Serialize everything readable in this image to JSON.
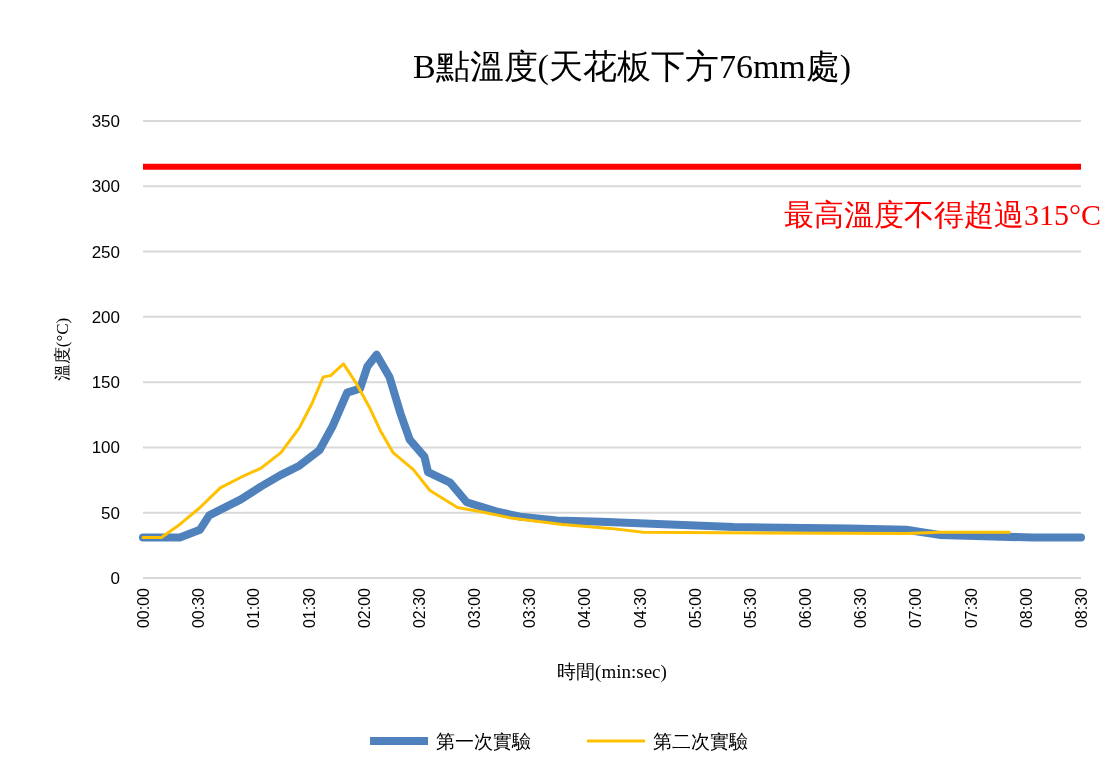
{
  "chart_data": {
    "type": "line",
    "title": "B點溫度(天花板下方76mm處)",
    "xlabel": "時間(min:sec)",
    "ylabel": "溫度(°C)",
    "xlim": [
      0,
      510
    ],
    "xticks": [
      {
        "value": 0,
        "label": "00:00"
      },
      {
        "value": 30,
        "label": "00:30"
      },
      {
        "value": 60,
        "label": "01:00"
      },
      {
        "value": 90,
        "label": "01:30"
      },
      {
        "value": 120,
        "label": "02:00"
      },
      {
        "value": 150,
        "label": "02:30"
      },
      {
        "value": 180,
        "label": "03:00"
      },
      {
        "value": 210,
        "label": "03:30"
      },
      {
        "value": 240,
        "label": "04:00"
      },
      {
        "value": 270,
        "label": "04:30"
      },
      {
        "value": 300,
        "label": "05:00"
      },
      {
        "value": 330,
        "label": "05:30"
      },
      {
        "value": 360,
        "label": "06:00"
      },
      {
        "value": 390,
        "label": "06:30"
      },
      {
        "value": 420,
        "label": "07:00"
      },
      {
        "value": 450,
        "label": "07:30"
      },
      {
        "value": 480,
        "label": "08:00"
      },
      {
        "value": 510,
        "label": "08:30"
      }
    ],
    "ylim": [
      0,
      350
    ],
    "yticks": [
      0,
      50,
      100,
      150,
      200,
      250,
      300,
      350
    ],
    "grid": "y",
    "legend": "bottom",
    "ref_lines": [
      {
        "axis": "y",
        "value": 315,
        "label": "最高溫度不得超過315°C",
        "color": "#ff0000"
      }
    ],
    "series": [
      {
        "name": "第一次實驗",
        "color": "#4f81bd",
        "x": [
          0,
          20,
          31,
          36,
          53,
          64,
          75,
          85,
          96,
          103,
          111,
          118,
          122,
          127,
          134,
          140,
          145,
          153,
          155,
          167,
          176,
          192,
          205,
          225,
          249,
          321,
          384,
          415,
          433,
          457,
          484,
          510
        ],
        "values": [
          31,
          31,
          37,
          48,
          60,
          70,
          79,
          86,
          98,
          116,
          142,
          145,
          162,
          171,
          154,
          126,
          106,
          93,
          81,
          73,
          58,
          51,
          47,
          44,
          43,
          39,
          38,
          37,
          33,
          32,
          31,
          31
        ]
      },
      {
        "name": "第二次實驗",
        "color": "#ffc000",
        "x": [
          0,
          10,
          20,
          31,
          42,
          53,
          64,
          75,
          85,
          92,
          98,
          102,
          109,
          116,
          123,
          129,
          136,
          147,
          156,
          171,
          183,
          200,
          228,
          254,
          272,
          415,
          433,
          471
        ],
        "values": [
          31,
          31,
          41,
          54,
          69,
          77,
          84,
          96,
          115,
          134,
          154,
          155,
          164,
          149,
          131,
          113,
          96,
          83,
          67,
          54,
          51,
          46,
          41,
          38,
          35,
          34,
          35,
          35
        ]
      }
    ]
  }
}
